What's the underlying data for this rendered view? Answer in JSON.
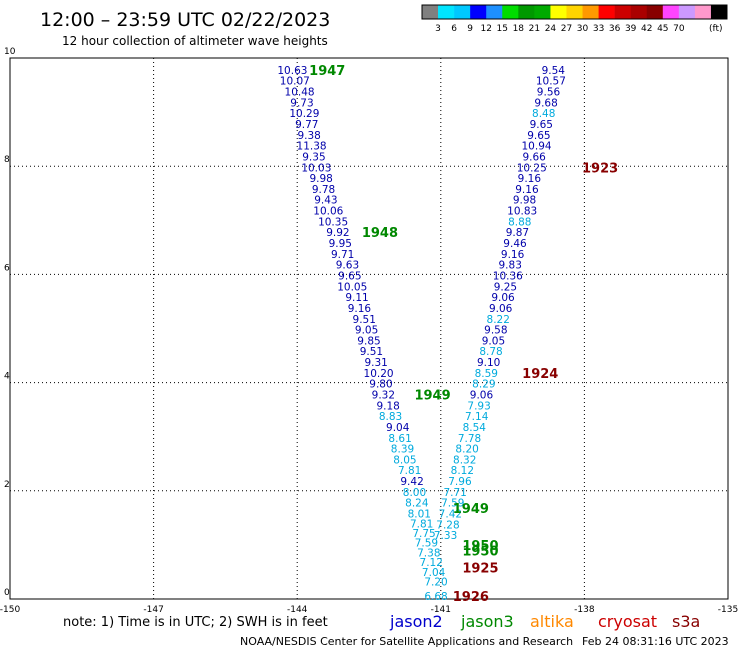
{
  "header": {
    "title": "12:00 – 23:59 UTC 02/22/2023",
    "subtitle": "12 hour collection of altimeter wave heights"
  },
  "legend": {
    "colors": [
      "#808080",
      "#00e5ff",
      "#00c8ff",
      "#0000ff",
      "#1e90ff",
      "#00dd00",
      "#009900",
      "#00aa00",
      "#ffff00",
      "#ffd400",
      "#ff9900",
      "#ff0000",
      "#cc0000",
      "#aa0000",
      "#880000",
      "#ff44ff",
      "#cc99ff",
      "#ff99cc",
      "#000000"
    ],
    "ticks": [
      "3",
      "6",
      "9",
      "12",
      "15",
      "18",
      "21",
      "24",
      "27",
      "30",
      "33",
      "36",
      "39",
      "42",
      "45",
      "70"
    ],
    "unit": "(ft)"
  },
  "footer": {
    "note": "note: 1) Time is in UTC; 2) SWH is in feet",
    "credit": "NOAA/NESDIS Center for Satellite Applications and Research",
    "timestamp": "Feb 24 08:31:16 UTC 2023",
    "missions": [
      {
        "name": "jason2",
        "color": "#0000cc"
      },
      {
        "name": "jason3",
        "color": "#008800"
      },
      {
        "name": "altika",
        "color": "#ff8800"
      },
      {
        "name": "cryosat",
        "color": "#cc0000"
      },
      {
        "name": "s3a",
        "color": "#880000"
      }
    ]
  },
  "chart_data": {
    "type": "scatter",
    "xlim": [
      -150,
      -135
    ],
    "ylim": [
      0,
      10
    ],
    "x_ticks": [
      "-150",
      "-147",
      "-144",
      "-141",
      "-138",
      "-135"
    ],
    "y_ticks": [
      "0",
      "2",
      "4",
      "6",
      "8",
      "10"
    ],
    "grid": true,
    "series": [
      {
        "track": "left",
        "color_dark": "#0000aa",
        "color_light": "#00aadd",
        "points": [
          {
            "x": -144.1,
            "y": 9.78,
            "v": "10.63",
            "c": "dark"
          },
          {
            "x": -144.05,
            "y": 9.58,
            "v": "10.07",
            "c": "dark"
          },
          {
            "x": -143.95,
            "y": 9.38,
            "v": "10.48",
            "c": "dark"
          },
          {
            "x": -143.9,
            "y": 9.18,
            "v": "9.73",
            "c": "dark"
          },
          {
            "x": -143.85,
            "y": 8.98,
            "v": "10.29",
            "c": "dark"
          },
          {
            "x": -143.8,
            "y": 8.78,
            "v": "9.77",
            "c": "dark"
          },
          {
            "x": -143.75,
            "y": 8.58,
            "v": "9.38",
            "c": "dark"
          },
          {
            "x": -143.7,
            "y": 8.38,
            "v": "11.38",
            "c": "dark"
          },
          {
            "x": -143.65,
            "y": 8.18,
            "v": "9.35",
            "c": "dark"
          },
          {
            "x": -143.6,
            "y": 7.98,
            "v": "10.03",
            "c": "dark"
          },
          {
            "x": -143.5,
            "y": 7.78,
            "v": "9.98",
            "c": "dark"
          },
          {
            "x": -143.45,
            "y": 7.58,
            "v": "9.78",
            "c": "dark"
          },
          {
            "x": -143.4,
            "y": 7.38,
            "v": "9.43",
            "c": "dark"
          },
          {
            "x": -143.35,
            "y": 7.18,
            "v": "10.06",
            "c": "dark"
          },
          {
            "x": -143.25,
            "y": 6.98,
            "v": "10.35",
            "c": "dark"
          },
          {
            "x": -143.15,
            "y": 6.78,
            "v": "9.92",
            "c": "dark"
          },
          {
            "x": -143.1,
            "y": 6.58,
            "v": "9.95",
            "c": "dark"
          },
          {
            "x": -143.05,
            "y": 6.38,
            "v": "9.71",
            "c": "dark"
          },
          {
            "x": -142.95,
            "y": 6.18,
            "v": "9.63",
            "c": "dark"
          },
          {
            "x": -142.9,
            "y": 5.98,
            "v": "9.65",
            "c": "dark"
          },
          {
            "x": -142.85,
            "y": 5.78,
            "v": "10.05",
            "c": "dark"
          },
          {
            "x": -142.75,
            "y": 5.58,
            "v": "9.11",
            "c": "dark"
          },
          {
            "x": -142.7,
            "y": 5.38,
            "v": "9.16",
            "c": "dark"
          },
          {
            "x": -142.6,
            "y": 5.18,
            "v": "9.51",
            "c": "dark"
          },
          {
            "x": -142.55,
            "y": 4.98,
            "v": "9.05",
            "c": "dark"
          },
          {
            "x": -142.5,
            "y": 4.78,
            "v": "9.85",
            "c": "dark"
          },
          {
            "x": -142.45,
            "y": 4.58,
            "v": "9.51",
            "c": "dark"
          },
          {
            "x": -142.35,
            "y": 4.38,
            "v": "9.31",
            "c": "dark"
          },
          {
            "x": -142.3,
            "y": 4.18,
            "v": "10.20",
            "c": "dark"
          },
          {
            "x": -142.25,
            "y": 3.98,
            "v": "9.80",
            "c": "dark"
          },
          {
            "x": -142.2,
            "y": 3.78,
            "v": "9.32",
            "c": "dark"
          },
          {
            "x": -142.1,
            "y": 3.58,
            "v": "9.18",
            "c": "dark"
          },
          {
            "x": -142.05,
            "y": 3.38,
            "v": "8.83",
            "c": "light"
          },
          {
            "x": -141.9,
            "y": 3.18,
            "v": "9.04",
            "c": "dark"
          },
          {
            "x": -141.85,
            "y": 2.98,
            "v": "8.61",
            "c": "light"
          },
          {
            "x": -141.8,
            "y": 2.78,
            "v": "8.39",
            "c": "light"
          },
          {
            "x": -141.75,
            "y": 2.58,
            "v": "8.05",
            "c": "light"
          },
          {
            "x": -141.65,
            "y": 2.38,
            "v": "7.81",
            "c": "light"
          },
          {
            "x": -141.6,
            "y": 2.18,
            "v": "9.42",
            "c": "dark"
          },
          {
            "x": -141.55,
            "y": 1.98,
            "v": "8.00",
            "c": "light"
          },
          {
            "x": -141.5,
            "y": 1.78,
            "v": "8.24",
            "c": "light"
          },
          {
            "x": -141.45,
            "y": 1.58,
            "v": "8.01",
            "c": "light"
          },
          {
            "x": -141.4,
            "y": 1.4,
            "v": "7.81",
            "c": "light"
          },
          {
            "x": -141.35,
            "y": 1.22,
            "v": "7.75",
            "c": "light"
          },
          {
            "x": -141.3,
            "y": 1.04,
            "v": "7.59",
            "c": "light"
          },
          {
            "x": -141.25,
            "y": 0.86,
            "v": "7.38",
            "c": "light"
          },
          {
            "x": -141.2,
            "y": 0.68,
            "v": "7.12",
            "c": "light"
          },
          {
            "x": -141.15,
            "y": 0.5,
            "v": "7.04",
            "c": "light"
          },
          {
            "x": -141.1,
            "y": 0.32,
            "v": "7.20",
            "c": "light"
          },
          {
            "x": -141.1,
            "y": 0.06,
            "v": "6.68",
            "c": "light"
          }
        ]
      },
      {
        "track": "right",
        "color_dark": "#0000aa",
        "color_light": "#00aadd",
        "points": [
          {
            "x": -138.65,
            "y": 9.78,
            "v": "9.54",
            "c": "dark"
          },
          {
            "x": -138.7,
            "y": 9.58,
            "v": "10.57",
            "c": "dark"
          },
          {
            "x": -138.75,
            "y": 9.38,
            "v": "9.56",
            "c": "dark"
          },
          {
            "x": -138.8,
            "y": 9.18,
            "v": "9.68",
            "c": "dark"
          },
          {
            "x": -138.85,
            "y": 8.98,
            "v": "8.48",
            "c": "light"
          },
          {
            "x": -138.9,
            "y": 8.78,
            "v": "9.65",
            "c": "dark"
          },
          {
            "x": -138.95,
            "y": 8.58,
            "v": "9.65",
            "c": "dark"
          },
          {
            "x": -139.0,
            "y": 8.38,
            "v": "10.94",
            "c": "dark"
          },
          {
            "x": -139.05,
            "y": 8.18,
            "v": "9.66",
            "c": "dark"
          },
          {
            "x": -139.1,
            "y": 7.98,
            "v": "10.25",
            "c": "dark"
          },
          {
            "x": -139.15,
            "y": 7.78,
            "v": "9.16",
            "c": "dark"
          },
          {
            "x": -139.2,
            "y": 7.58,
            "v": "9.16",
            "c": "dark"
          },
          {
            "x": -139.25,
            "y": 7.38,
            "v": "9.98",
            "c": "dark"
          },
          {
            "x": -139.3,
            "y": 7.18,
            "v": "10.83",
            "c": "dark"
          },
          {
            "x": -139.35,
            "y": 6.98,
            "v": "8.88",
            "c": "light"
          },
          {
            "x": -139.4,
            "y": 6.78,
            "v": "9.87",
            "c": "dark"
          },
          {
            "x": -139.45,
            "y": 6.58,
            "v": "9.46",
            "c": "dark"
          },
          {
            "x": -139.5,
            "y": 6.38,
            "v": "9.16",
            "c": "dark"
          },
          {
            "x": -139.55,
            "y": 6.18,
            "v": "9.83",
            "c": "dark"
          },
          {
            "x": -139.6,
            "y": 5.98,
            "v": "10.36",
            "c": "dark"
          },
          {
            "x": -139.65,
            "y": 5.78,
            "v": "9.25",
            "c": "dark"
          },
          {
            "x": -139.7,
            "y": 5.58,
            "v": "9.06",
            "c": "dark"
          },
          {
            "x": -139.75,
            "y": 5.38,
            "v": "9.06",
            "c": "dark"
          },
          {
            "x": -139.8,
            "y": 5.18,
            "v": "8.22",
            "c": "light"
          },
          {
            "x": -139.85,
            "y": 4.98,
            "v": "9.58",
            "c": "dark"
          },
          {
            "x": -139.9,
            "y": 4.78,
            "v": "9.05",
            "c": "dark"
          },
          {
            "x": -139.95,
            "y": 4.58,
            "v": "8.78",
            "c": "light"
          },
          {
            "x": -140.0,
            "y": 4.38,
            "v": "9.10",
            "c": "dark"
          },
          {
            "x": -140.05,
            "y": 4.18,
            "v": "8.59",
            "c": "light"
          },
          {
            "x": -140.1,
            "y": 3.98,
            "v": "8.29",
            "c": "light"
          },
          {
            "x": -140.15,
            "y": 3.78,
            "v": "9.06",
            "c": "dark"
          },
          {
            "x": -140.2,
            "y": 3.58,
            "v": "7.93",
            "c": "light"
          },
          {
            "x": -140.25,
            "y": 3.38,
            "v": "7.14",
            "c": "light"
          },
          {
            "x": -140.3,
            "y": 3.18,
            "v": "8.54",
            "c": "light"
          },
          {
            "x": -140.4,
            "y": 2.98,
            "v": "7.78",
            "c": "light"
          },
          {
            "x": -140.45,
            "y": 2.78,
            "v": "8.20",
            "c": "light"
          },
          {
            "x": -140.5,
            "y": 2.58,
            "v": "8.32",
            "c": "light"
          },
          {
            "x": -140.55,
            "y": 2.38,
            "v": "8.12",
            "c": "light"
          },
          {
            "x": -140.6,
            "y": 2.18,
            "v": "7.96",
            "c": "light"
          },
          {
            "x": -140.7,
            "y": 1.98,
            "v": "7.71",
            "c": "light"
          },
          {
            "x": -140.75,
            "y": 1.78,
            "v": "7.59",
            "c": "light"
          },
          {
            "x": -140.8,
            "y": 1.58,
            "v": "7.42",
            "c": "light"
          },
          {
            "x": -140.85,
            "y": 1.38,
            "v": "7.28",
            "c": "light"
          },
          {
            "x": -140.9,
            "y": 1.18,
            "v": "7.33",
            "c": "light"
          }
        ]
      }
    ],
    "annotations": [
      {
        "text": "1947",
        "x": -143.75,
        "y": 9.78,
        "color": "#008800"
      },
      {
        "text": "1948",
        "x": -142.65,
        "y": 6.78,
        "color": "#008800"
      },
      {
        "text": "1949",
        "x": -141.55,
        "y": 3.78,
        "color": "#008800"
      },
      {
        "text": "1949",
        "x": -140.75,
        "y": 1.68,
        "color": "#008800"
      },
      {
        "text": "1950",
        "x": -140.55,
        "y": 1.0,
        "color": "#008800"
      },
      {
        "text": "1950",
        "x": -140.55,
        "y": 0.9,
        "color": "#008800"
      },
      {
        "text": "1923",
        "x": -138.05,
        "y": 7.98,
        "color": "#880000"
      },
      {
        "text": "1924",
        "x": -139.3,
        "y": 4.18,
        "color": "#880000"
      },
      {
        "text": "1925",
        "x": -140.55,
        "y": 0.58,
        "color": "#880000"
      },
      {
        "text": "1926",
        "x": -140.75,
        "y": 0.06,
        "color": "#880000"
      }
    ]
  }
}
